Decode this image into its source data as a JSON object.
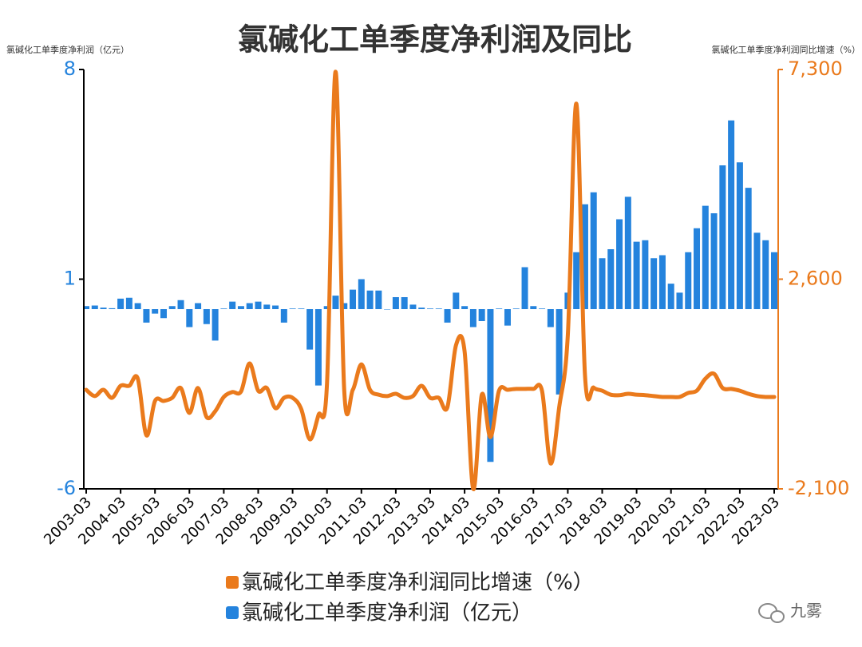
{
  "chart_data": {
    "type": "combo",
    "title": "氯碱化工单季度净利润及同比",
    "y_label": "氯碱化工单季度净利润（亿元）",
    "y2_label": "氯碱化工单季度净利润同比增速（%）",
    "watermark": "九雾",
    "categories": [
      "2003-03",
      null,
      null,
      null,
      "2004-03",
      null,
      null,
      null,
      "2005-03",
      null,
      null,
      null,
      "2006-03",
      null,
      null,
      null,
      "2007-03",
      null,
      null,
      null,
      "2008-03",
      null,
      null,
      null,
      "2009-03",
      null,
      null,
      null,
      "2010-03",
      null,
      null,
      null,
      "2011-03",
      null,
      null,
      null,
      "2012-03",
      null,
      null,
      null,
      "2013-03",
      null,
      null,
      null,
      "2014-03",
      null,
      null,
      null,
      "2015-03",
      null,
      null,
      null,
      "2016-03",
      null,
      null,
      null,
      "2017-03",
      null,
      null,
      null,
      "2018-03",
      null,
      null,
      null,
      "2019-03",
      null,
      null,
      null,
      "2020-03",
      null,
      null,
      null,
      "2021-03",
      null,
      null,
      null,
      "2022-03",
      null,
      null,
      null,
      "2023-03"
    ],
    "series": [
      {
        "name": "氯碱化工单季度净利润同比增速（%）",
        "type": "line",
        "axis": "y2",
        "color": "#ea7a1c",
        "values": [
          120,
          -20,
          120,
          -60,
          210,
          210,
          370,
          -900,
          -130,
          -130,
          -60,
          160,
          -400,
          160,
          -490,
          -360,
          -40,
          70,
          80,
          710,
          100,
          160,
          -290,
          -60,
          -60,
          -310,
          -990,
          -450,
          260,
          7250,
          120,
          120,
          690,
          120,
          10,
          -20,
          30,
          -60,
          -20,
          210,
          -60,
          -60,
          -270,
          1120,
          980,
          -2100,
          10,
          -940,
          100,
          120,
          140,
          140,
          140,
          100,
          -1530,
          -270,
          1340,
          6530,
          440,
          170,
          100,
          10,
          0,
          30,
          10,
          0,
          -20,
          -40,
          -40,
          -40,
          50,
          100,
          370,
          480,
          160,
          140,
          100,
          30,
          -20,
          -40,
          -40
        ]
      },
      {
        "name": "氯碱化工单季度净利润（亿元）",
        "type": "bar",
        "axis": "y",
        "color": "#2483dd",
        "values": [
          0.1,
          0.12,
          0.05,
          0.03,
          0.35,
          0.38,
          0.2,
          -0.45,
          -0.15,
          -0.3,
          0.1,
          0.3,
          -0.6,
          0.2,
          -0.5,
          -1.05,
          0.02,
          0.25,
          0.1,
          0.2,
          0.25,
          0.15,
          0.12,
          -0.45,
          0.02,
          0.02,
          -1.35,
          -2.55,
          0.1,
          0.45,
          0.2,
          0.65,
          1.0,
          0.62,
          0.62,
          0.0,
          0.4,
          0.4,
          0.15,
          0.05,
          0.02,
          0.02,
          -0.45,
          0.55,
          0.1,
          -0.6,
          -0.4,
          -5.1,
          0.02,
          -0.55,
          0.02,
          1.4,
          0.1,
          0.02,
          -0.6,
          -2.85,
          0.55,
          1.9,
          3.5,
          3.9,
          1.7,
          2.0,
          3.0,
          3.75,
          2.25,
          2.3,
          1.7,
          1.8,
          0.85,
          0.55,
          1.9,
          2.7,
          3.45,
          3.2,
          4.8,
          6.3,
          4.9,
          4.05,
          2.55,
          2.3,
          1.9
        ]
      }
    ],
    "ylim": [
      -6,
      8
    ],
    "yticks": [
      -6,
      1,
      8
    ],
    "y2lim": [
      -2100,
      7300
    ],
    "y2ticks": [
      {
        "value": -2100,
        "label": "-2,100"
      },
      {
        "value": 2600,
        "label": "2,600"
      },
      {
        "value": 7300,
        "label": "7,300"
      }
    ],
    "legend": "bottom"
  }
}
